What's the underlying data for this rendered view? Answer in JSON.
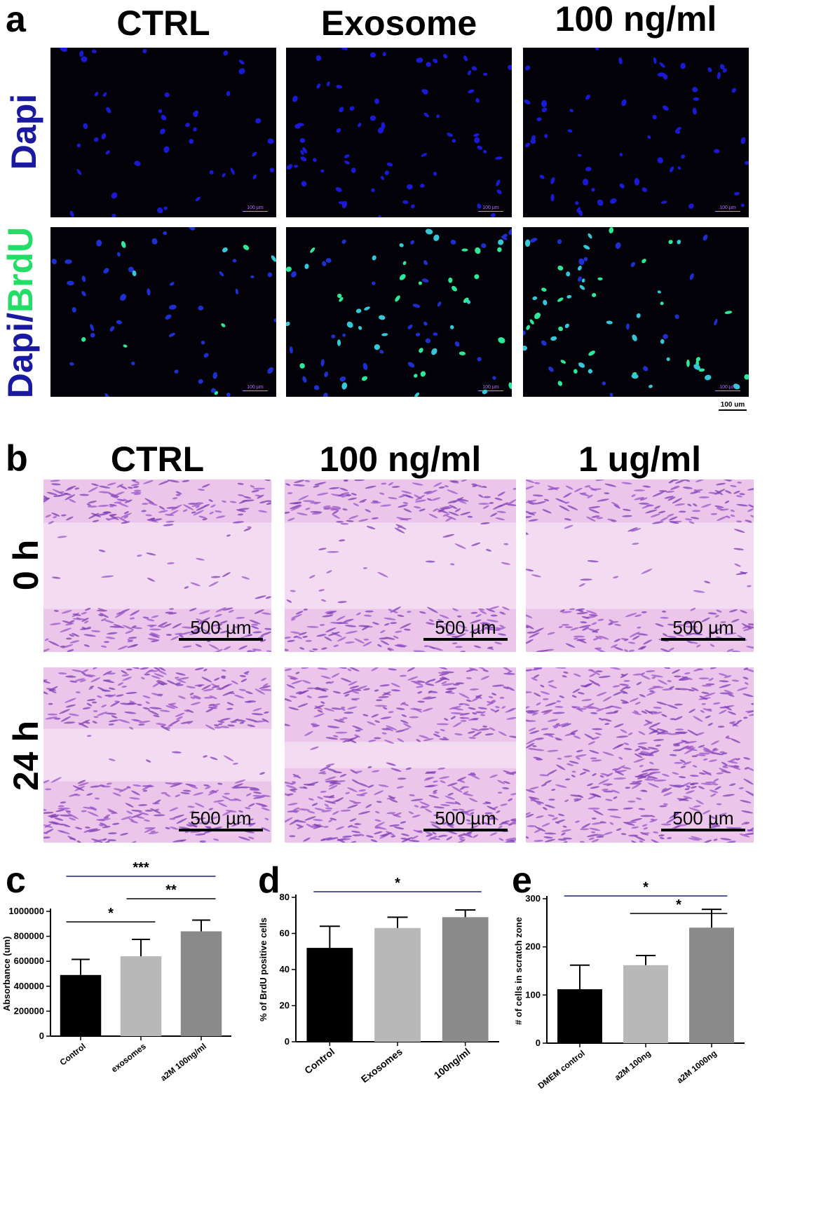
{
  "panel_a": {
    "letter": "a",
    "columns": [
      "CTRL",
      "Exosome",
      "100 ng/ml"
    ],
    "row1_label": "Dapi",
    "row2_label_part1": "Dapi/",
    "row2_label_part2": "BrdU",
    "inset_scale_label": "100 µm",
    "scale_label": "100 um"
  },
  "panel_b": {
    "letter": "b",
    "columns": [
      "CTRL",
      "100 ng/ml",
      "1 ug/ml"
    ],
    "row1_label": "0 h",
    "row2_label": "24 h",
    "scale_label": "500 µm"
  },
  "colors": {
    "dapi_text": "#1a1aa0",
    "brdu_text": "#22dd66",
    "bar_black": "#000000",
    "bar_light": "#b8b8b8",
    "bar_mid": "#8a8a8a",
    "sig_line_blue": "#1e1e7a"
  },
  "chart_data": [
    {
      "panel": "c",
      "type": "bar",
      "categories": [
        "Control",
        "exosomes",
        "a2M 100ng/ml"
      ],
      "values": [
        490000,
        640000,
        840000
      ],
      "errors": [
        125000,
        135000,
        90000
      ],
      "ylabel": "Absorbance (um)",
      "ylim": [
        0,
        1000000
      ],
      "yticks": [
        "0",
        "200000",
        "400000",
        "600000",
        "800000",
        "1000000"
      ],
      "significance": [
        {
          "from": 0,
          "to": 1,
          "label": "*"
        },
        {
          "from": 1,
          "to": 2,
          "label": "**"
        },
        {
          "from": 0,
          "to": 2,
          "label": "***"
        }
      ]
    },
    {
      "panel": "d",
      "type": "bar",
      "categories": [
        "Control",
        "Exosomes",
        "100ng/ml"
      ],
      "values": [
        52,
        63,
        69
      ],
      "errors": [
        12,
        6,
        4
      ],
      "ylabel": "% of BrdU positive cells",
      "ylim": [
        0,
        80
      ],
      "yticks": [
        "0",
        "20",
        "40",
        "60",
        "80"
      ],
      "significance": [
        {
          "from": 0,
          "to": 2,
          "label": "*"
        }
      ]
    },
    {
      "panel": "e",
      "type": "bar",
      "categories": [
        "DMEM control",
        "a2M 100ng",
        "a2M 1000ng"
      ],
      "values": [
        112,
        162,
        240
      ],
      "errors": [
        50,
        20,
        38
      ],
      "ylabel": "# of cells in scratch zone",
      "ylim": [
        0,
        300
      ],
      "yticks": [
        "0",
        "100",
        "200",
        "300"
      ],
      "significance": [
        {
          "from": 1,
          "to": 2,
          "label": "*"
        },
        {
          "from": 0,
          "to": 2,
          "label": "*"
        }
      ]
    }
  ]
}
